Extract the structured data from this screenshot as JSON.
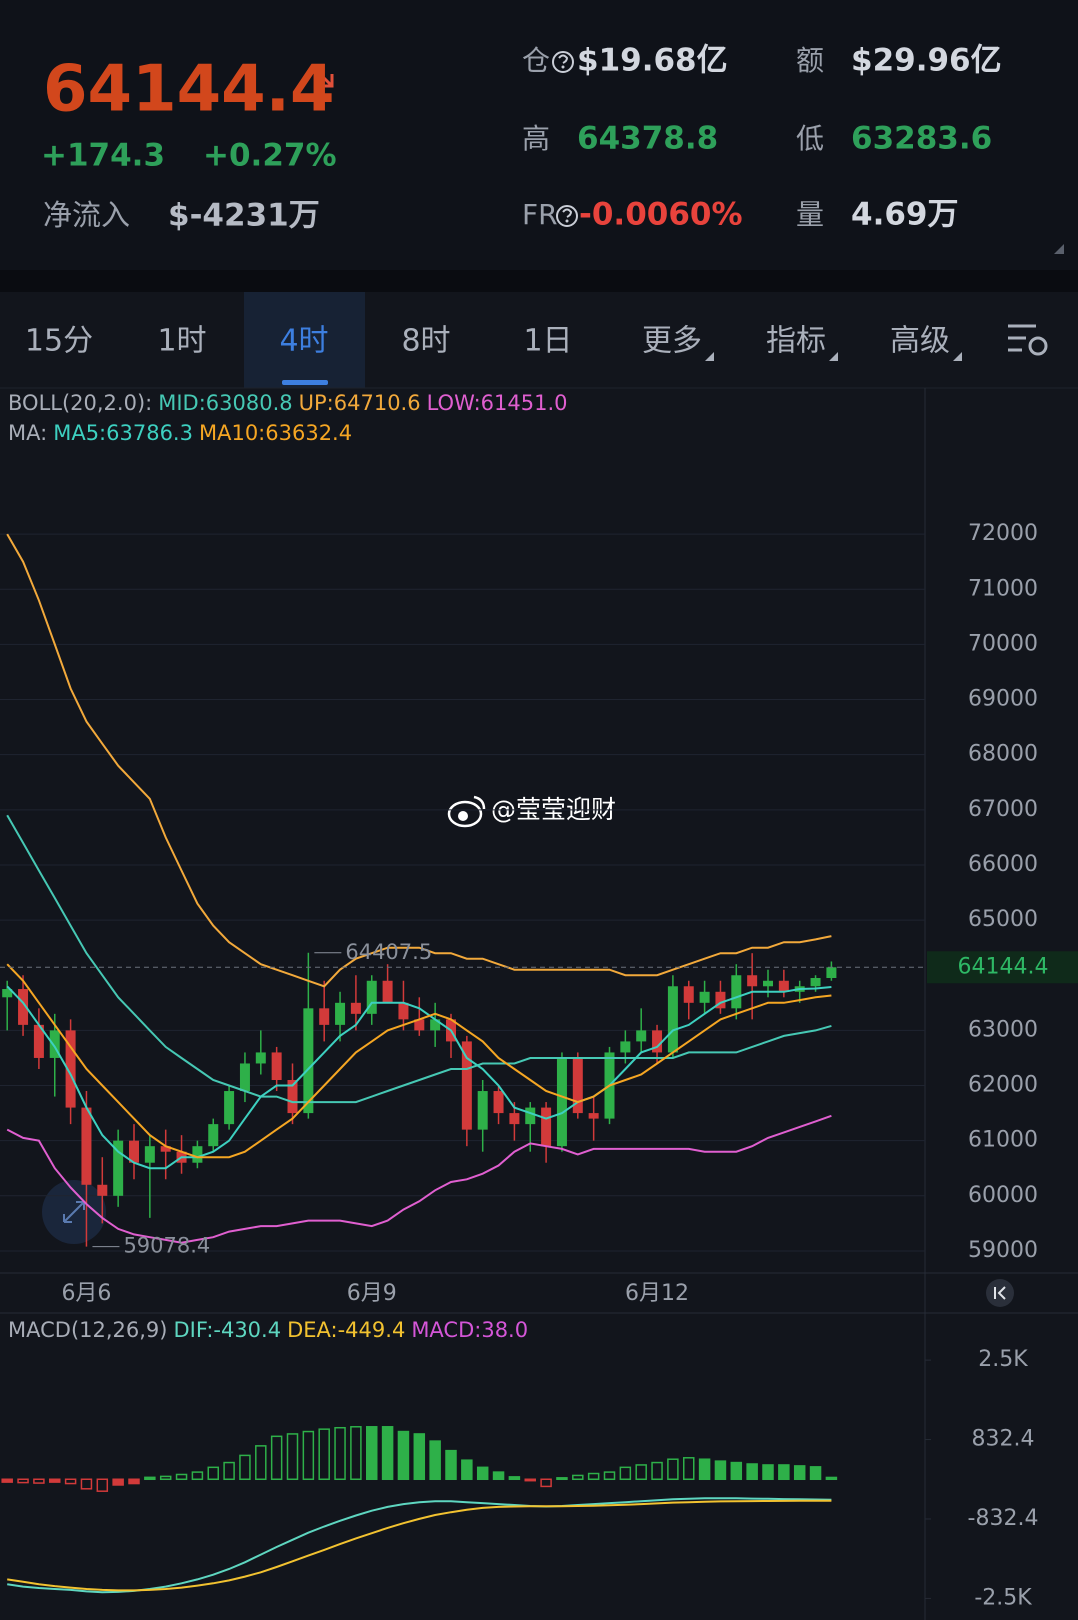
{
  "header": {
    "price": "64144.4",
    "change": "+174.3",
    "change_pct": "+0.27%",
    "net_inflow_label": "净流入",
    "net_inflow": "$-4231万",
    "stats": [
      {
        "label": "仓",
        "value": "$19.68亿",
        "color": "#d3d7df"
      },
      {
        "label": "额",
        "value": "$29.96亿",
        "color": "#d3d7df"
      },
      {
        "label": "高",
        "value": "64378.8",
        "color": "#2ea05a"
      },
      {
        "label": "低",
        "value": "63283.6",
        "color": "#2ea05a"
      },
      {
        "label": "FR",
        "value": "-0.0060%",
        "color": "#e8433c"
      },
      {
        "label": "量",
        "value": "4.69万",
        "color": "#d3d7df"
      }
    ]
  },
  "tabs": [
    "15分",
    "1时",
    "4时",
    "8时",
    "1日",
    "更多",
    "指标",
    "高级"
  ],
  "watermark": "@莹莹迎财",
  "chart_data": [
    {
      "type": "candlestick",
      "up_color": "#2eb049",
      "down_color": "#d23a3a",
      "grid": true,
      "ylim": [
        58600,
        74650
      ],
      "yticks": [
        59000,
        60000,
        61000,
        62000,
        63000,
        65000,
        66000,
        67000,
        68000,
        69000,
        70000,
        71000,
        72000
      ],
      "x": [
        null,
        null,
        null,
        null,
        null,
        "6月6",
        null,
        null,
        null,
        null,
        null,
        null,
        null,
        null,
        null,
        null,
        null,
        null,
        null,
        null,
        null,
        null,
        null,
        "6月9",
        null,
        null,
        null,
        null,
        null,
        null,
        null,
        null,
        null,
        null,
        null,
        null,
        null,
        null,
        null,
        null,
        null,
        "6月12",
        null,
        null,
        null,
        null,
        null,
        null,
        null,
        null,
        null,
        null,
        null
      ],
      "candles": [
        [
          63600,
          63900,
          63000,
          63750
        ],
        [
          63750,
          64000,
          62900,
          63100
        ],
        [
          63100,
          63400,
          62300,
          62500
        ],
        [
          62500,
          63300,
          61800,
          63000
        ],
        [
          63000,
          63200,
          61300,
          61600
        ],
        [
          61600,
          61900,
          59078.4,
          60200
        ],
        [
          60200,
          60700,
          59500,
          60000
        ],
        [
          60000,
          61200,
          59800,
          61000
        ],
        [
          61000,
          61300,
          60300,
          60600
        ],
        [
          60600,
          61100,
          59600,
          60900
        ],
        [
          60900,
          61200,
          60300,
          60800
        ],
        [
          60800,
          61100,
          60400,
          60600
        ],
        [
          60600,
          61000,
          60500,
          60900
        ],
        [
          60900,
          61400,
          60800,
          61300
        ],
        [
          61300,
          62000,
          61200,
          61900
        ],
        [
          61900,
          62600,
          61700,
          62400
        ],
        [
          62400,
          63000,
          62200,
          62600
        ],
        [
          62600,
          62700,
          61900,
          62100
        ],
        [
          62100,
          62400,
          61300,
          61500
        ],
        [
          61500,
          64407.5,
          61400,
          63400
        ],
        [
          63400,
          63900,
          62800,
          63100
        ],
        [
          63100,
          63700,
          62800,
          63500
        ],
        [
          63500,
          64000,
          63000,
          63300
        ],
        [
          63300,
          64000,
          63100,
          63900
        ],
        [
          63900,
          64200,
          63500,
          63500
        ],
        [
          63500,
          63900,
          63000,
          63200
        ],
        [
          63200,
          63600,
          62900,
          63000
        ],
        [
          63000,
          63500,
          62700,
          63200
        ],
        [
          63200,
          63300,
          62500,
          62800
        ],
        [
          62800,
          62900,
          60900,
          61200
        ],
        [
          61200,
          62100,
          60800,
          61900
        ],
        [
          61900,
          62000,
          61300,
          61500
        ],
        [
          61500,
          61700,
          61000,
          61300
        ],
        [
          61300,
          61700,
          60800,
          61600
        ],
        [
          61600,
          61700,
          60600,
          60900
        ],
        [
          60900,
          62600,
          60800,
          62500
        ],
        [
          62500,
          62600,
          61400,
          61500
        ],
        [
          61500,
          61800,
          61000,
          61400
        ],
        [
          61400,
          62700,
          61300,
          62600
        ],
        [
          62600,
          63000,
          62400,
          62800
        ],
        [
          62800,
          63400,
          62600,
          63000
        ],
        [
          63000,
          63100,
          62400,
          62600
        ],
        [
          62600,
          64000,
          62500,
          63800
        ],
        [
          63800,
          63900,
          63200,
          63500
        ],
        [
          63500,
          63900,
          63300,
          63700
        ],
        [
          63700,
          63900,
          63300,
          63400
        ],
        [
          63400,
          64200,
          63200,
          64000
        ],
        [
          64000,
          64400,
          63200,
          63800
        ],
        [
          63800,
          64100,
          63600,
          63900
        ],
        [
          63900,
          64100,
          63600,
          63700
        ],
        [
          63700,
          63900,
          63500,
          63800
        ],
        [
          63800,
          64000,
          63700,
          63950
        ],
        [
          63950,
          64250,
          63900,
          64144.4
        ]
      ],
      "legend_groups": [
        {
          "label": "BOLL(20,2.0):",
          "series": [
            {
              "name": "MID:63080.8",
              "color": "#46c8b4",
              "values": [
                66900,
                66400,
                65900,
                65400,
                64900,
                64400,
                64000,
                63600,
                63300,
                63000,
                62700,
                62500,
                62300,
                62100,
                62000,
                61900,
                61800,
                61800,
                61700,
                61700,
                61700,
                61700,
                61700,
                61800,
                61900,
                62000,
                62100,
                62200,
                62300,
                62300,
                62400,
                62400,
                62400,
                62500,
                62500,
                62500,
                62500,
                62500,
                62500,
                62500,
                62500,
                62500,
                62500,
                62600,
                62600,
                62600,
                62600,
                62700,
                62800,
                62900,
                62950,
                63000,
                63080.8
              ]
            },
            {
              "name": "UP:64710.6",
              "color": "#f2a93b",
              "values": [
                72000,
                71500,
                70800,
                70000,
                69200,
                68600,
                68200,
                67800,
                67500,
                67200,
                66500,
                65900,
                65300,
                64900,
                64600,
                64400,
                64200,
                64100,
                64000,
                63900,
                63800,
                64100,
                64300,
                64400,
                64500,
                64500,
                64500,
                64400,
                64400,
                64300,
                64300,
                64200,
                64100,
                64100,
                64100,
                64100,
                64100,
                64100,
                64100,
                64000,
                64000,
                64000,
                64100,
                64200,
                64300,
                64400,
                64400,
                64500,
                64500,
                64600,
                64600,
                64650,
                64710.6
              ]
            },
            {
              "name": "LOW:61451.0",
              "color": "#e05fd0",
              "values": [
                61200,
                61050,
                61000,
                60500,
                60150,
                59850,
                59600,
                59400,
                59300,
                59250,
                59200,
                59150,
                59200,
                59250,
                59350,
                59400,
                59450,
                59450,
                59500,
                59550,
                59550,
                59550,
                59500,
                59450,
                59550,
                59750,
                59900,
                60100,
                60250,
                60300,
                60400,
                60550,
                60800,
                60950,
                60900,
                60850,
                60750,
                60850,
                60850,
                60850,
                60850,
                60850,
                60850,
                60850,
                60800,
                60800,
                60800,
                60900,
                61050,
                61150,
                61250,
                61350,
                61451
              ]
            }
          ]
        },
        {
          "label": "MA:",
          "series": [
            {
              "name": "MA5:63786.3",
              "color": "#3dd0c0",
              "values": [
                63800,
                63500,
                63100,
                62700,
                62200,
                61600,
                61100,
                60800,
                60600,
                60500,
                60500,
                60700,
                60700,
                60800,
                61000,
                61400,
                61800,
                62000,
                62000,
                62300,
                62600,
                62900,
                63100,
                63500,
                63500,
                63500,
                63400,
                63200,
                63000,
                62500,
                62300,
                62000,
                61600,
                61500,
                61400,
                61500,
                61700,
                61800,
                62000,
                62300,
                62600,
                62700,
                63000,
                63100,
                63300,
                63500,
                63600,
                63700,
                63700,
                63700,
                63750,
                63760,
                63786.3
              ]
            },
            {
              "name": "MA10:63632.4",
              "color": "#f5a623",
              "values": [
                64200,
                63900,
                63500,
                63100,
                62700,
                62300,
                62000,
                61700,
                61400,
                61100,
                60900,
                60800,
                60700,
                60700,
                60700,
                60800,
                61000,
                61200,
                61400,
                61700,
                62000,
                62300,
                62600,
                62800,
                63000,
                63100,
                63200,
                63300,
                63200,
                63000,
                62800,
                62500,
                62300,
                62100,
                61900,
                61800,
                61700,
                61800,
                62000,
                62100,
                62200,
                62400,
                62600,
                62800,
                63000,
                63200,
                63300,
                63400,
                63500,
                63500,
                63550,
                63600,
                63632.4
              ]
            }
          ]
        }
      ]
    },
    {
      "type": "macd",
      "title": "MACD(12,26,9)",
      "grid": false,
      "ylim": [
        -2950,
        3380
      ],
      "yticks": [
        {
          "value": 2497.2,
          "label": "2.5K"
        },
        832.4,
        -832.4,
        {
          "value": -2497.2,
          "label": "-2.5K"
        }
      ],
      "lines": [
        {
          "name": "DIF:-430.4",
          "color": "#5ed6c0",
          "values": [
            -2200,
            -2250,
            -2280,
            -2300,
            -2320,
            -2350,
            -2370,
            -2360,
            -2340,
            -2300,
            -2250,
            -2180,
            -2100,
            -2000,
            -1880,
            -1740,
            -1580,
            -1420,
            -1270,
            -1120,
            -990,
            -870,
            -760,
            -660,
            -580,
            -520,
            -480,
            -460,
            -460,
            -480,
            -500,
            -520,
            -540,
            -560,
            -570,
            -560,
            -540,
            -520,
            -500,
            -480,
            -460,
            -440,
            -420,
            -410,
            -400,
            -400,
            -400,
            -405,
            -410,
            -415,
            -420,
            -425,
            -430.4
          ]
        },
        {
          "name": "DEA:-449.4",
          "color": "#f2c230",
          "values": [
            -2100,
            -2150,
            -2200,
            -2240,
            -2270,
            -2300,
            -2320,
            -2330,
            -2330,
            -2320,
            -2300,
            -2270,
            -2230,
            -2180,
            -2120,
            -2040,
            -1950,
            -1840,
            -1720,
            -1600,
            -1480,
            -1360,
            -1240,
            -1130,
            -1020,
            -920,
            -830,
            -750,
            -690,
            -640,
            -600,
            -580,
            -570,
            -565,
            -565,
            -565,
            -560,
            -555,
            -545,
            -535,
            -520,
            -505,
            -490,
            -480,
            -470,
            -465,
            -460,
            -458,
            -456,
            -454,
            -452,
            -451,
            -449.4
          ]
        }
      ],
      "histogram": {
        "name": "MACD:38.0",
        "color": "#d456d8",
        "up_color": "#2eb049",
        "down_color": "#d23a3a",
        "values": [
          -60,
          -70,
          -80,
          -60,
          -90,
          -200,
          -250,
          -120,
          -90,
          40,
          60,
          100,
          150,
          250,
          350,
          500,
          700,
          900,
          950,
          1000,
          1050,
          1080,
          1100,
          1100,
          1100,
          1000,
          950,
          800,
          600,
          400,
          250,
          150,
          50,
          -30,
          -150,
          30,
          80,
          120,
          150,
          250,
          300,
          350,
          420,
          450,
          420,
          380,
          350,
          320,
          300,
          300,
          280,
          260,
          38.0
        ]
      }
    }
  ]
}
